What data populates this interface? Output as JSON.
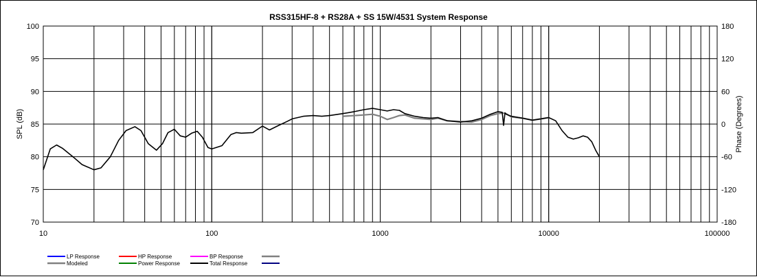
{
  "chart_data": {
    "type": "line",
    "title": "RSS315HF-8 + RS28A + SS 15W/4531  System Response",
    "ylabel": "SPL (dB)",
    "y2label": "Phase (Degrees)",
    "xlabel": "",
    "xscale": "log",
    "xlim": [
      10,
      100000
    ],
    "ylim": [
      70,
      100
    ],
    "y2lim": [
      -180,
      180
    ],
    "grid": true,
    "legend_position": "bottom-left",
    "x_tick_labels": [
      "10",
      "100",
      "1000",
      "10000",
      "100000"
    ],
    "y_tick_labels": [
      "100",
      "95",
      "90",
      "85",
      "80",
      "75",
      "70"
    ],
    "y2_tick_labels": [
      "180",
      "120",
      "60",
      "0",
      "-60",
      "-120",
      "-180"
    ],
    "legend": [
      {
        "name": "LP Response",
        "color": "#0000ff"
      },
      {
        "name": "HP Response",
        "color": "#ff0000"
      },
      {
        "name": "BP Response",
        "color": "#ff00ff"
      },
      {
        "name": "",
        "color": "#808080"
      },
      {
        "name": "Modeled",
        "color": "#808080"
      },
      {
        "name": "Power Response",
        "color": "#008000"
      },
      {
        "name": "Total Response",
        "color": "#000000"
      },
      {
        "name": "",
        "color": "#000080"
      }
    ],
    "series": [
      {
        "name": "Total Response",
        "color": "#000000",
        "x": [
          10,
          11,
          12,
          13,
          15,
          17,
          20,
          22,
          25,
          28,
          31,
          35,
          38,
          42,
          47,
          51,
          55,
          60,
          65,
          70,
          76,
          82,
          88,
          95,
          100,
          115,
          130,
          140,
          150,
          175,
          200,
          220,
          250,
          280,
          300,
          350,
          400,
          450,
          500,
          600,
          700,
          800,
          900,
          1000,
          1100,
          1200,
          1300,
          1400,
          1600,
          1800,
          2000,
          2200,
          2500,
          3000,
          3500,
          4000,
          4500,
          5000,
          5300,
          5400,
          5500,
          5600,
          6000,
          7000,
          8000,
          9000,
          10000,
          11000,
          12000,
          13000,
          14000,
          15000,
          16000,
          17000,
          18000,
          19000,
          20000
        ],
        "y": [
          78.0,
          81.2,
          81.8,
          81.3,
          80.0,
          78.8,
          78.0,
          78.3,
          80.0,
          82.5,
          84.0,
          84.6,
          84.0,
          82.0,
          81.0,
          82.0,
          83.7,
          84.2,
          83.2,
          83.0,
          83.6,
          83.9,
          83.0,
          81.4,
          81.2,
          81.7,
          83.4,
          83.7,
          83.6,
          83.7,
          84.7,
          84.1,
          84.8,
          85.4,
          85.8,
          86.2,
          86.3,
          86.2,
          86.3,
          86.6,
          86.9,
          87.2,
          87.4,
          87.2,
          87.0,
          87.2,
          87.1,
          86.6,
          86.2,
          86.0,
          85.9,
          86.0,
          85.5,
          85.3,
          85.5,
          85.9,
          86.5,
          86.9,
          86.8,
          84.8,
          86.7,
          86.5,
          86.2,
          85.9,
          85.6,
          85.8,
          86.0,
          85.5,
          84.0,
          83.0,
          82.7,
          82.9,
          83.2,
          83.0,
          82.3,
          81.0,
          80.0
        ]
      },
      {
        "name": "Modeled",
        "color": "#808080",
        "x": [
          600,
          700,
          800,
          900,
          1000,
          1100,
          1200,
          1300,
          1400,
          1600,
          1800,
          2000,
          2200,
          2500,
          3000,
          3500,
          4000,
          4500,
          5000,
          5500,
          6000,
          7000,
          8000,
          9000,
          10000
        ],
        "y": [
          86.2,
          86.3,
          86.4,
          86.5,
          86.2,
          85.7,
          86.0,
          86.3,
          86.4,
          85.9,
          85.8,
          85.7,
          85.9,
          85.5,
          85.4,
          85.3,
          85.7,
          86.3,
          86.6,
          86.7,
          86.1,
          85.9,
          85.6,
          85.8,
          86.0
        ]
      }
    ]
  }
}
